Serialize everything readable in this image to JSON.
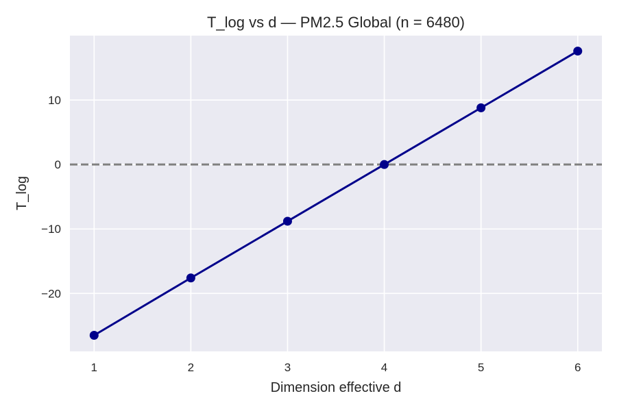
{
  "chart_data": {
    "type": "line",
    "title": "T_log vs d — PM2.5 Global (n = 6480)",
    "xlabel": "Dimension effective d",
    "ylabel": "T_log",
    "x": [
      1,
      2,
      3,
      4,
      5,
      6
    ],
    "series": [
      {
        "values": [
          -26.5,
          -17.6,
          -8.8,
          0.0,
          8.8,
          17.6
        ],
        "color": "#00008b",
        "marker": "circle"
      }
    ],
    "reference_line": {
      "y": 0,
      "style": "dashed",
      "color": "#808080"
    },
    "xlim": [
      0.75,
      6.25
    ],
    "ylim": [
      -29,
      20
    ],
    "xticks": [
      1,
      2,
      3,
      4,
      5,
      6
    ],
    "xtick_labels": [
      "1",
      "2",
      "3",
      "4",
      "5",
      "6"
    ],
    "yticks": [
      -20,
      -10,
      0,
      10
    ],
    "ytick_labels": [
      "−20",
      "−10",
      "0",
      "10"
    ],
    "grid": true,
    "background": "#eaeaf2",
    "grid_color": "#ffffff"
  }
}
